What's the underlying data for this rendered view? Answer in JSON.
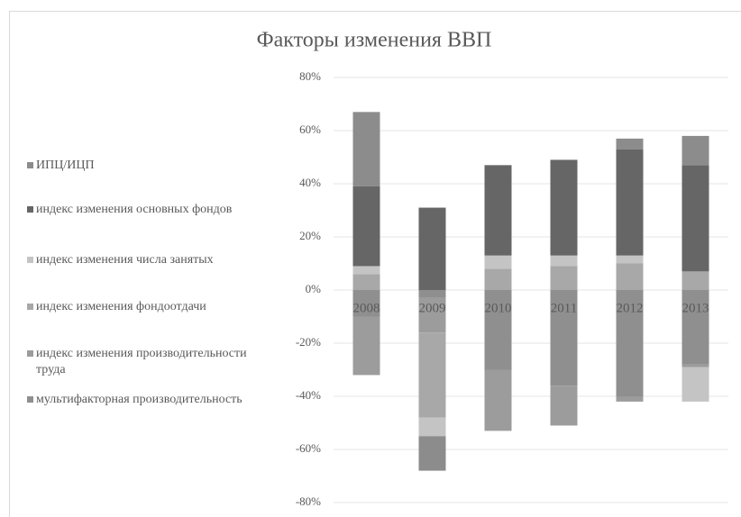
{
  "chart_data": {
    "type": "stacked_bar",
    "title": "Факторы изменения ВВП",
    "categories": [
      "2008",
      "2009",
      "2010",
      "2011",
      "2012",
      "2013"
    ],
    "series": [
      {
        "name": "мультифакторная производительность",
        "color": "#8f8f8f",
        "values": [
          -10,
          -3,
          -30,
          -36,
          -40,
          -28
        ]
      },
      {
        "name": "индекс изменения производительности труда",
        "color": "#9c9c9c",
        "values": [
          -22,
          -13,
          -23,
          -15,
          -2,
          -1
        ]
      },
      {
        "name": "индекс изменения фондоотдачи",
        "color": "#a8a8a8",
        "values": [
          6,
          -32,
          8,
          9,
          10,
          7
        ]
      },
      {
        "name": "индекс изменения числа занятых",
        "color": "#c4c4c4",
        "values": [
          3,
          -7,
          5,
          4,
          3,
          -13
        ]
      },
      {
        "name": "индекс изменения основных фондов",
        "color": "#666666",
        "values": [
          30,
          31,
          34,
          36,
          40,
          40
        ]
      },
      {
        "name": "ИПЦ/ИЦП",
        "color": "#8c8c8c",
        "values": [
          28,
          -13,
          0,
          0,
          4,
          11
        ]
      }
    ],
    "ylim": [
      -80,
      80
    ],
    "yticks": [
      {
        "value": -80,
        "label": "-80%"
      },
      {
        "value": -60,
        "label": "-60%"
      },
      {
        "value": -40,
        "label": "-40%"
      },
      {
        "value": -20,
        "label": "-20%"
      },
      {
        "value": 0,
        "label": "0%"
      },
      {
        "value": 20,
        "label": "20%"
      },
      {
        "value": 40,
        "label": "40%"
      },
      {
        "value": 60,
        "label": "60%"
      },
      {
        "value": 80,
        "label": "80%"
      }
    ],
    "grid": true,
    "legend": "left"
  }
}
